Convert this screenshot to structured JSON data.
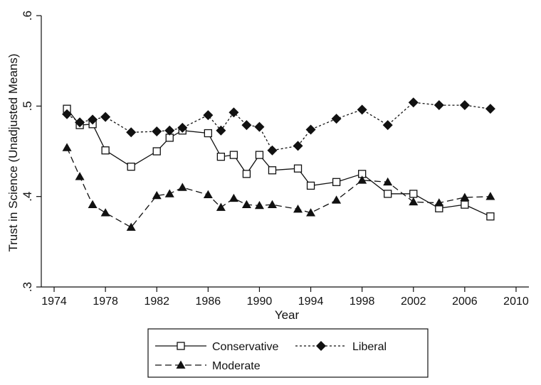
{
  "chart_data": {
    "type": "line",
    "xlabel": "Year",
    "ylabel": "Trust in Science (Unadjusted Means)",
    "xlim": [
      1973,
      2011
    ],
    "ylim": [
      0.3,
      0.6
    ],
    "xticks": [
      1974,
      1978,
      1982,
      1986,
      1990,
      1994,
      1998,
      2002,
      2006,
      2010
    ],
    "yticks": [
      {
        "value": 0.3,
        "label": ".3"
      },
      {
        "value": 0.4,
        "label": ".4"
      },
      {
        "value": 0.5,
        "label": ".5"
      },
      {
        "value": 0.6,
        "label": ".6"
      }
    ],
    "grid": false,
    "legend_position": "bottom",
    "series": [
      {
        "name": "Conservative",
        "line": "solid",
        "marker": "hollow-square",
        "points": [
          [
            1975,
            0.497
          ],
          [
            1976,
            0.479
          ],
          [
            1977,
            0.48
          ],
          [
            1978,
            0.451
          ],
          [
            1980,
            0.433
          ],
          [
            1982,
            0.45
          ],
          [
            1983,
            0.465
          ],
          [
            1984,
            0.473
          ],
          [
            1986,
            0.47
          ],
          [
            1987,
            0.444
          ],
          [
            1988,
            0.446
          ],
          [
            1989,
            0.425
          ],
          [
            1990,
            0.446
          ],
          [
            1991,
            0.429
          ],
          [
            1993,
            0.431
          ],
          [
            1994,
            0.412
          ],
          [
            1996,
            0.416
          ],
          [
            1998,
            0.425
          ],
          [
            2000,
            0.403
          ],
          [
            2002,
            0.403
          ],
          [
            2004,
            0.387
          ],
          [
            2006,
            0.391
          ],
          [
            2008,
            0.378
          ]
        ]
      },
      {
        "name": "Liberal",
        "line": "short-dash",
        "marker": "diamond",
        "points": [
          [
            1975,
            0.491
          ],
          [
            1976,
            0.482
          ],
          [
            1977,
            0.485
          ],
          [
            1978,
            0.488
          ],
          [
            1980,
            0.471
          ],
          [
            1982,
            0.472
          ],
          [
            1983,
            0.473
          ],
          [
            1984,
            0.476
          ],
          [
            1986,
            0.49
          ],
          [
            1987,
            0.473
          ],
          [
            1988,
            0.493
          ],
          [
            1989,
            0.479
          ],
          [
            1990,
            0.477
          ],
          [
            1991,
            0.451
          ],
          [
            1993,
            0.456
          ],
          [
            1994,
            0.474
          ],
          [
            1996,
            0.486
          ],
          [
            1998,
            0.496
          ],
          [
            2000,
            0.479
          ],
          [
            2002,
            0.504
          ],
          [
            2004,
            0.501
          ],
          [
            2006,
            0.501
          ],
          [
            2008,
            0.497
          ]
        ]
      },
      {
        "name": "Moderate",
        "line": "long-dash",
        "marker": "triangle",
        "points": [
          [
            1975,
            0.454
          ],
          [
            1976,
            0.422
          ],
          [
            1977,
            0.391
          ],
          [
            1978,
            0.382
          ],
          [
            1980,
            0.366
          ],
          [
            1982,
            0.401
          ],
          [
            1983,
            0.403
          ],
          [
            1984,
            0.41
          ],
          [
            1986,
            0.402
          ],
          [
            1987,
            0.388
          ],
          [
            1988,
            0.398
          ],
          [
            1989,
            0.391
          ],
          [
            1990,
            0.39
          ],
          [
            1991,
            0.391
          ],
          [
            1993,
            0.386
          ],
          [
            1994,
            0.382
          ],
          [
            1996,
            0.396
          ],
          [
            1998,
            0.418
          ],
          [
            2000,
            0.416
          ],
          [
            2002,
            0.394
          ],
          [
            2004,
            0.393
          ],
          [
            2006,
            0.399
          ],
          [
            2008,
            0.4
          ]
        ]
      }
    ]
  }
}
